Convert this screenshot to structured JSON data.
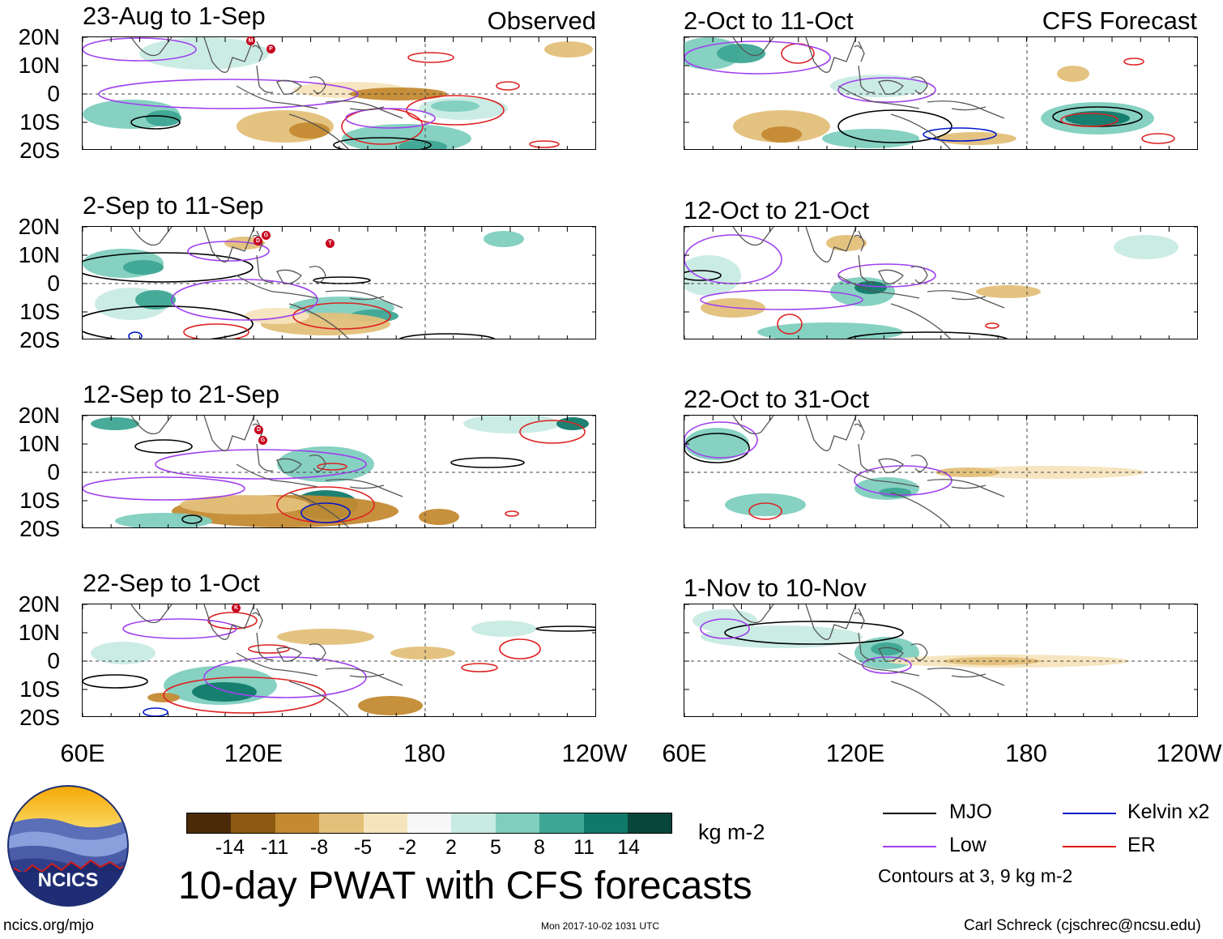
{
  "columns": {
    "observed": {
      "label": "Observed"
    },
    "forecast": {
      "label": "CFS Forecast"
    }
  },
  "panels": [
    {
      "id": "obs-1",
      "title": "23-Aug to 1-Sep"
    },
    {
      "id": "obs-2",
      "title": "2-Sep to 11-Sep"
    },
    {
      "id": "obs-3",
      "title": "12-Sep to 21-Sep"
    },
    {
      "id": "obs-4",
      "title": "22-Sep to 1-Oct"
    },
    {
      "id": "fc-1",
      "title": "2-Oct to 11-Oct"
    },
    {
      "id": "fc-2",
      "title": "12-Oct to 21-Oct"
    },
    {
      "id": "fc-3",
      "title": "22-Oct to 31-Oct"
    },
    {
      "id": "fc-4",
      "title": "1-Nov to 10-Nov"
    }
  ],
  "axes": {
    "lat_labels": [
      "20N",
      "10N",
      "0",
      "10S",
      "20S"
    ],
    "lon_labels": [
      "60E",
      "120E",
      "180",
      "120W"
    ]
  },
  "colorbar": {
    "colors": [
      "#4a2a08",
      "#8c5a12",
      "#c48a32",
      "#e3c07a",
      "#f5e4bd",
      "#f7f7f7",
      "#c8ebe3",
      "#7fcfbf",
      "#3ea694",
      "#107a6a",
      "#08453b"
    ],
    "ticks": [
      "-14",
      "-11",
      "-8",
      "-5",
      "-2",
      "2",
      "5",
      "8",
      "11",
      "14"
    ],
    "units": "kg m-2"
  },
  "legend": {
    "items": [
      {
        "label": "MJO",
        "color": "#000000"
      },
      {
        "label": "Kelvin x2",
        "color": "#0018cc"
      },
      {
        "label": "Low",
        "color": "#a040ee"
      },
      {
        "label": "ER",
        "color": "#dd1111"
      }
    ],
    "note": "Contours at 3, 9 kg m-2"
  },
  "title": "10-day PWAT with CFS forecasts",
  "logo": {
    "text": "NCICS"
  },
  "footer": {
    "url": "ncics.org/mjo",
    "timestamp": "Mon 2017-10-02 1031 UTC",
    "author": "Carl Schreck (cjschrec@ncsu.edu)"
  },
  "storm_markers": [
    "M",
    "P",
    "D",
    "G",
    "T",
    "D",
    "G",
    "K"
  ]
}
